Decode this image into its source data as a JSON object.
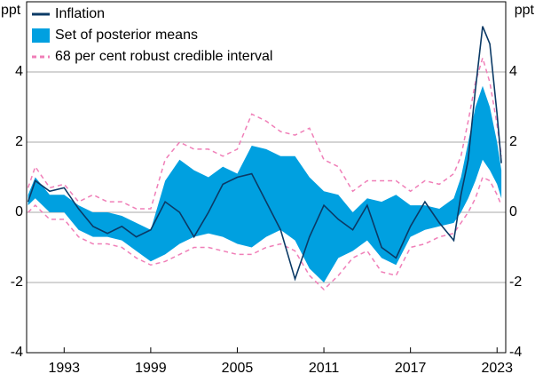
{
  "chart_data": {
    "type": "line",
    "y_unit": "ppt",
    "y2_unit": "ppt",
    "x": [
      1990.5,
      1991,
      1992,
      1993,
      1994,
      1995,
      1996,
      1997,
      1998,
      1999,
      2000,
      2001,
      2002,
      2003,
      2004,
      2005,
      2006,
      2007,
      2008,
      2009,
      2010,
      2011,
      2012,
      2013,
      2014,
      2015,
      2016,
      2017,
      2018,
      2019,
      2020,
      2020.5,
      2021,
      2021.5,
      2022,
      2022.5,
      2023,
      2023.3
    ],
    "series": [
      {
        "name": "Inflation",
        "color": "#0b3a66",
        "values": [
          0.3,
          0.9,
          0.6,
          0.7,
          0.1,
          -0.4,
          -0.6,
          -0.4,
          -0.7,
          -0.5,
          0.3,
          0.0,
          -0.7,
          0.0,
          0.8,
          1.0,
          1.1,
          0.3,
          -0.5,
          -1.9,
          -0.7,
          0.2,
          -0.2,
          -0.5,
          0.2,
          -1.0,
          -1.3,
          -0.4,
          0.3,
          -0.3,
          -0.8,
          0.5,
          1.5,
          3.5,
          5.3,
          4.8,
          2.8,
          1.4
        ]
      },
      {
        "name": "Set of posterior means",
        "color": "#00a0e0",
        "lower": [
          0.2,
          0.4,
          0.0,
          0.0,
          -0.5,
          -0.7,
          -0.7,
          -0.8,
          -1.1,
          -1.4,
          -1.2,
          -0.9,
          -0.7,
          -0.6,
          -0.7,
          -0.9,
          -1.0,
          -0.7,
          -0.5,
          -0.8,
          -1.6,
          -2.0,
          -1.3,
          -1.1,
          -0.8,
          -1.3,
          -1.5,
          -0.7,
          -0.5,
          -0.4,
          -0.3,
          0.0,
          0.4,
          0.9,
          1.5,
          1.2,
          0.8,
          0.4
        ],
        "upper": [
          0.5,
          1.0,
          0.5,
          0.5,
          0.2,
          0.0,
          0.0,
          -0.1,
          -0.3,
          -0.5,
          0.9,
          1.5,
          1.2,
          1.0,
          1.3,
          1.1,
          1.9,
          1.8,
          1.6,
          1.6,
          1.0,
          0.6,
          0.5,
          0.0,
          0.4,
          0.3,
          0.5,
          0.2,
          0.2,
          0.1,
          0.4,
          1.0,
          2.0,
          3.0,
          3.6,
          3.0,
          2.0,
          1.2
        ]
      },
      {
        "name": "68 per cent robust credible interval",
        "color": "#f07fb8",
        "dashed": true,
        "lower": [
          0.0,
          0.2,
          -0.2,
          -0.2,
          -0.7,
          -0.9,
          -0.9,
          -1.0,
          -1.3,
          -1.5,
          -1.4,
          -1.2,
          -1.0,
          -1.0,
          -1.1,
          -1.2,
          -1.2,
          -1.0,
          -0.9,
          -1.1,
          -1.8,
          -2.2,
          -1.8,
          -1.3,
          -1.1,
          -1.7,
          -1.8,
          -1.0,
          -0.9,
          -0.7,
          -0.6,
          -0.3,
          0.0,
          0.4,
          1.0,
          0.9,
          0.5,
          0.2
        ],
        "upper": [
          0.7,
          1.3,
          0.7,
          0.8,
          0.3,
          0.5,
          0.3,
          0.3,
          0.1,
          0.1,
          1.5,
          2.0,
          1.8,
          1.8,
          1.6,
          1.8,
          2.8,
          2.6,
          2.3,
          2.2,
          2.4,
          1.5,
          1.3,
          0.6,
          0.9,
          0.9,
          0.9,
          0.6,
          0.9,
          0.8,
          1.1,
          1.6,
          2.6,
          3.7,
          4.4,
          3.7,
          2.5,
          1.6
        ]
      }
    ],
    "xlim": [
      1990.4,
      2023.6
    ],
    "xticks": [
      1993,
      1999,
      2005,
      2011,
      2017,
      2023
    ],
    "ylim": [
      -4,
      6
    ],
    "yticks": [
      -4,
      -2,
      0,
      2,
      4
    ],
    "y2lim": [
      -4,
      6
    ],
    "y2ticks": [
      -4,
      -2,
      0,
      2,
      4
    ],
    "grid": true,
    "legend": "top-left"
  }
}
